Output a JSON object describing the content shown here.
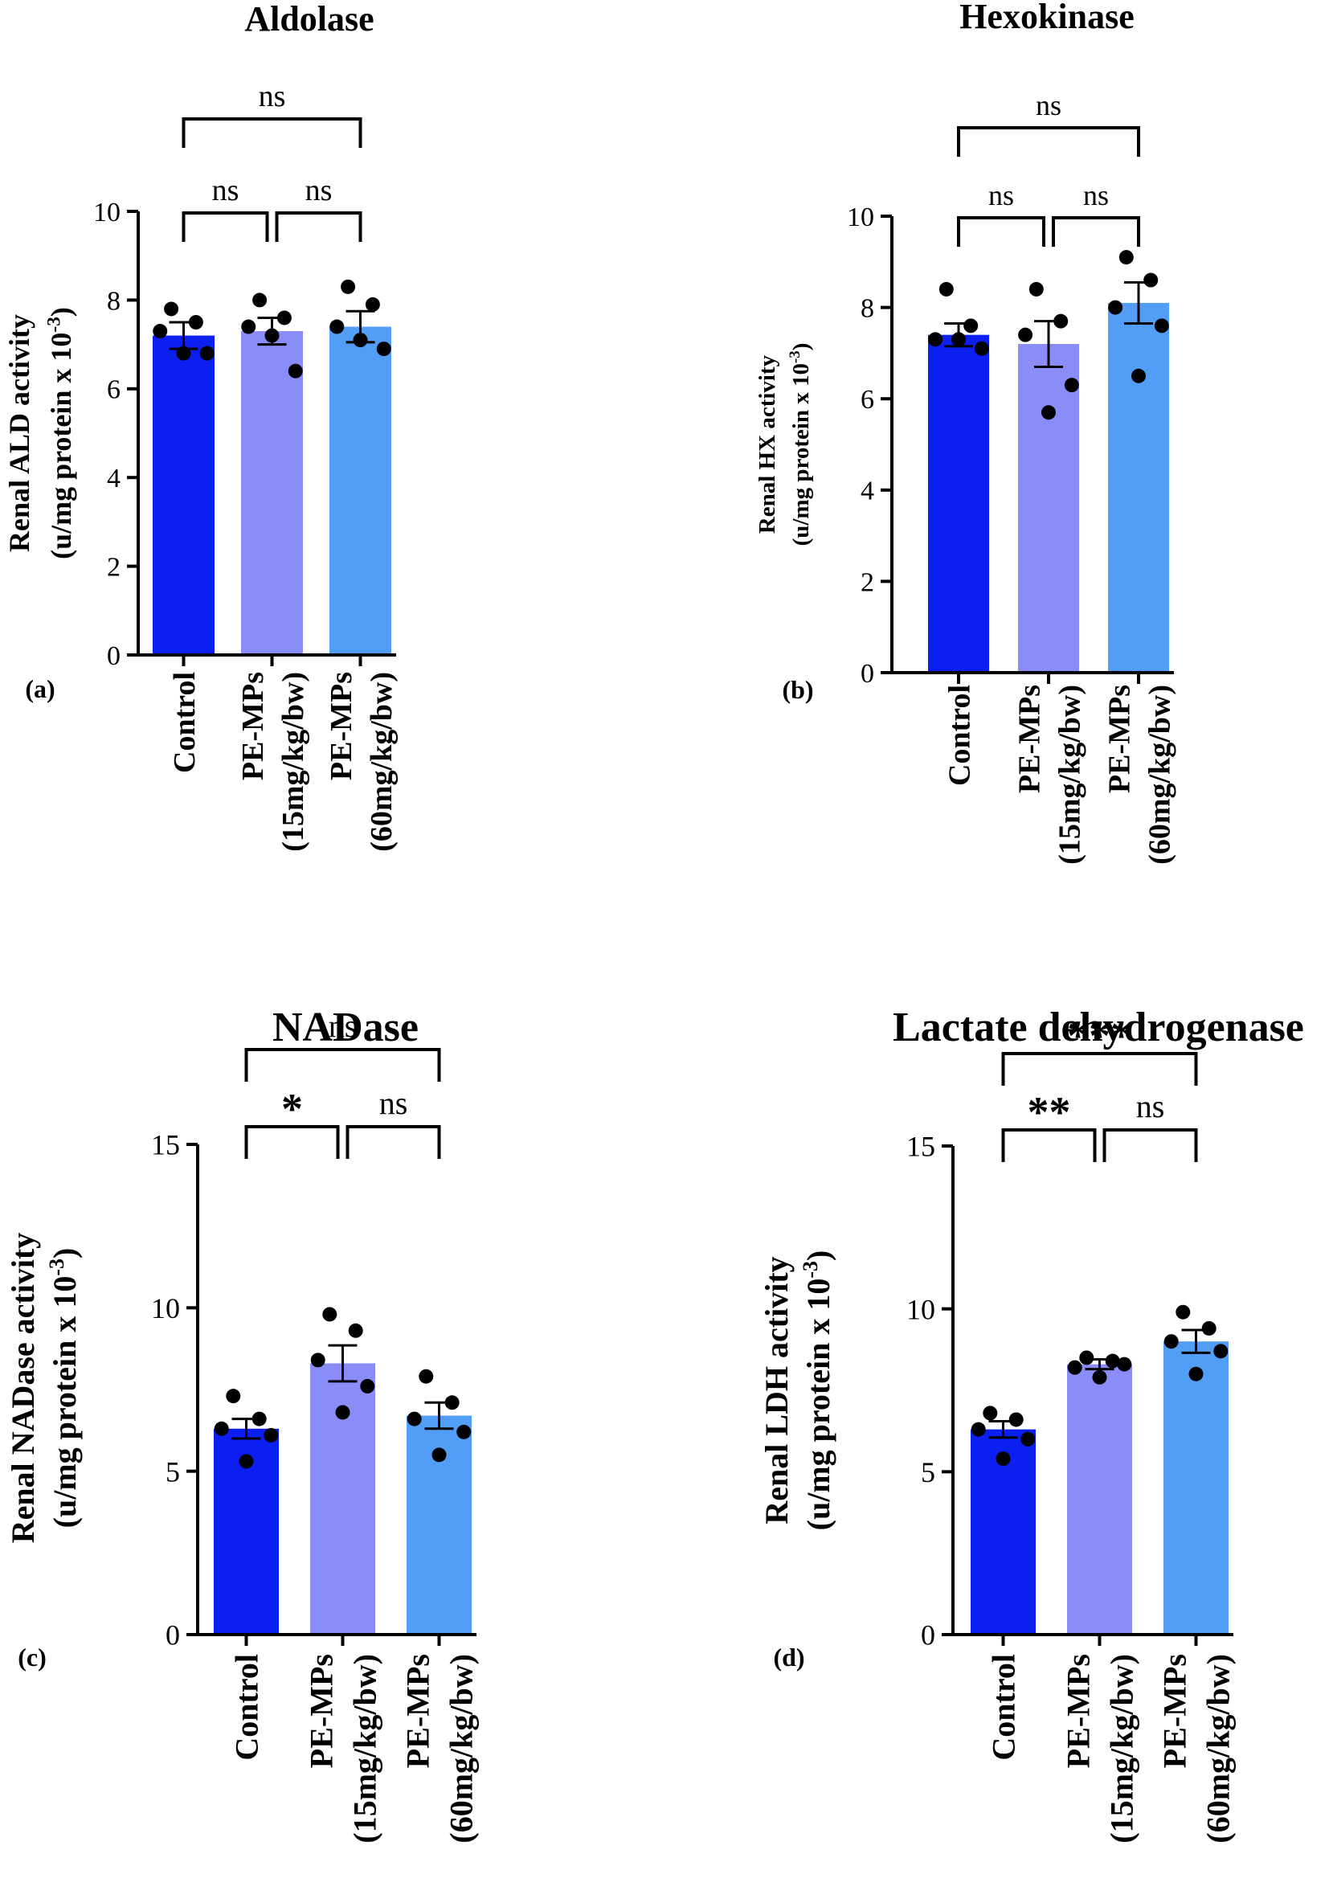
{
  "figure": {
    "colors": {
      "control": "#0a1ff0",
      "pe15": "#8a8cf8",
      "pe60": "#529ef7",
      "ink": "#000000"
    }
  },
  "chart_data": [
    {
      "type": "bar",
      "panel_label": "(a)",
      "title": "Aldolase",
      "ylabel_line1": "Renal ALD activity",
      "ylabel_line2": "(u/mg protein x 10",
      "ylabel_exp": "-3",
      "ylabel_end": ")",
      "ylim": [
        0,
        10
      ],
      "yticks": [
        0,
        2,
        4,
        6,
        8,
        10
      ],
      "categories": [
        {
          "line1": "Control",
          "line2": ""
        },
        {
          "line1": "PE-MPs",
          "line2": "(15mg/kg/bw)"
        },
        {
          "line1": "PE-MPs",
          "line2": "(60mg/kg/bw)"
        }
      ],
      "values": [
        7.2,
        7.3,
        7.4
      ],
      "sem": [
        0.3,
        0.3,
        0.35
      ],
      "points": [
        [
          7.8,
          7.5,
          7.3,
          6.8,
          6.8
        ],
        [
          8.0,
          7.6,
          7.4,
          6.4,
          7.2
        ],
        [
          8.3,
          7.9,
          7.4,
          6.9,
          7.1
        ]
      ],
      "comparisons": [
        {
          "from": 0,
          "to": 1,
          "label": "ns",
          "level": 0
        },
        {
          "from": 1,
          "to": 2,
          "label": "ns",
          "level": 0
        },
        {
          "from": 0,
          "to": 2,
          "label": "ns",
          "level": 1
        }
      ]
    },
    {
      "type": "bar",
      "panel_label": "(b)",
      "title": "Hexokinase",
      "ylabel_line1": "Renal HX activity",
      "ylabel_line2": "(u/mg protein x 10",
      "ylabel_exp": "-3",
      "ylabel_end": ")",
      "ylim": [
        0,
        10
      ],
      "yticks": [
        0,
        2,
        4,
        6,
        8,
        10
      ],
      "categories": [
        {
          "line1": "Control",
          "line2": ""
        },
        {
          "line1": "PE-MPs",
          "line2": "(15mg/kg/bw)"
        },
        {
          "line1": "PE-MPs",
          "line2": "(60mg/kg/bw)"
        }
      ],
      "values": [
        7.4,
        7.2,
        8.1
      ],
      "sem": [
        0.25,
        0.5,
        0.45
      ],
      "points": [
        [
          8.4,
          7.6,
          7.3,
          7.1,
          7.3
        ],
        [
          8.4,
          7.7,
          7.4,
          6.3,
          5.7
        ],
        [
          9.1,
          8.6,
          8.0,
          7.6,
          6.5
        ]
      ],
      "comparisons": [
        {
          "from": 0,
          "to": 1,
          "label": "ns",
          "level": 0
        },
        {
          "from": 1,
          "to": 2,
          "label": "ns",
          "level": 0
        },
        {
          "from": 0,
          "to": 2,
          "label": "ns",
          "level": 1
        }
      ]
    },
    {
      "type": "bar",
      "panel_label": "(c)",
      "title": "NADase",
      "ylabel_line1": "Renal NADase activity",
      "ylabel_line2": "(u/mg protein x 10",
      "ylabel_exp": "-3",
      "ylabel_end": ")",
      "ylim": [
        0,
        15
      ],
      "yticks": [
        0,
        5,
        10,
        15
      ],
      "categories": [
        {
          "line1": "Control",
          "line2": ""
        },
        {
          "line1": "PE-MPs",
          "line2": "(15mg/kg/bw)"
        },
        {
          "line1": "PE-MPs",
          "line2": "(60mg/kg/bw)"
        }
      ],
      "values": [
        6.3,
        8.3,
        6.7
      ],
      "sem": [
        0.3,
        0.55,
        0.4
      ],
      "points": [
        [
          7.3,
          6.6,
          6.3,
          6.1,
          5.3
        ],
        [
          9.8,
          9.3,
          8.4,
          7.6,
          6.8
        ],
        [
          7.9,
          7.1,
          6.6,
          6.2,
          5.5
        ]
      ],
      "comparisons": [
        {
          "from": 0,
          "to": 1,
          "label": "*",
          "level": 0
        },
        {
          "from": 1,
          "to": 2,
          "label": "ns",
          "level": 0
        },
        {
          "from": 0,
          "to": 2,
          "label": "ns",
          "level": 1
        }
      ]
    },
    {
      "type": "bar",
      "panel_label": "(d)",
      "title": "Lactate dehydrogenase",
      "ylabel_line1": "Renal LDH activity",
      "ylabel_line2": "(u/mg protein x 10",
      "ylabel_exp": "-3",
      "ylabel_end": ")",
      "ylim": [
        0,
        15
      ],
      "yticks": [
        0,
        5,
        10,
        15
      ],
      "categories": [
        {
          "line1": "Control",
          "line2": ""
        },
        {
          "line1": "PE-MPs",
          "line2": "(15mg/kg/bw)"
        },
        {
          "line1": "PE-MPs",
          "line2": "(60mg/kg/bw)"
        }
      ],
      "values": [
        6.3,
        8.3,
        9.0
      ],
      "sem": [
        0.25,
        0.15,
        0.35
      ],
      "points": [
        [
          6.8,
          6.6,
          6.3,
          6.0,
          5.4
        ],
        [
          8.5,
          8.4,
          8.2,
          8.3,
          7.9
        ],
        [
          9.9,
          9.4,
          9.0,
          8.7,
          8.0
        ]
      ],
      "comparisons": [
        {
          "from": 0,
          "to": 1,
          "label": "**",
          "level": 0
        },
        {
          "from": 1,
          "to": 2,
          "label": "ns",
          "level": 0
        },
        {
          "from": 0,
          "to": 2,
          "label": "***",
          "level": 1
        }
      ]
    }
  ]
}
